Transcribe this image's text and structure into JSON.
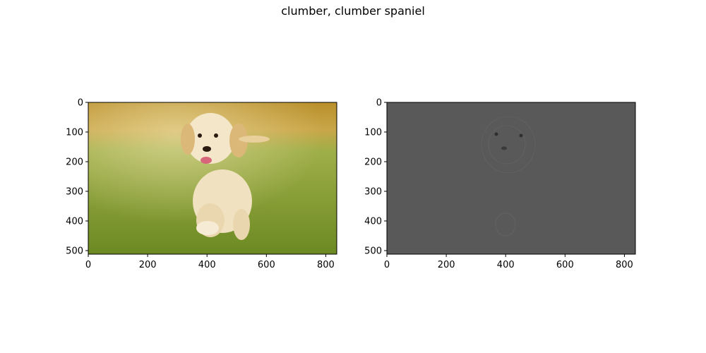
{
  "figure": {
    "title": "clumber, clumber spaniel"
  },
  "chart_data": [
    {
      "type": "image",
      "name": "original-image",
      "content": "photo of a golden retriever puppy running on grass",
      "xlim": [
        0,
        837
      ],
      "ylim": [
        512,
        0
      ],
      "xticks": [
        0,
        200,
        400,
        600,
        800
      ],
      "yticks": [
        0,
        100,
        200,
        300,
        400,
        500
      ],
      "xtick_labels": [
        "0",
        "200",
        "400",
        "600",
        "800"
      ],
      "ytick_labels": [
        "0",
        "100",
        "200",
        "300",
        "400",
        "500"
      ],
      "colors": {
        "sky": "#c9a23a",
        "grass": "#7e9a2c",
        "dog": "#f1e2c4"
      }
    },
    {
      "type": "image",
      "name": "saliency-map",
      "content": "gray saliency map with faint outline of the puppy face",
      "xlim": [
        0,
        837
      ],
      "ylim": [
        512,
        0
      ],
      "xticks": [
        0,
        200,
        400,
        600,
        800
      ],
      "yticks": [
        0,
        100,
        200,
        300,
        400,
        500
      ],
      "xtick_labels": [
        "0",
        "200",
        "400",
        "600",
        "800"
      ],
      "ytick_labels": [
        "0",
        "100",
        "200",
        "300",
        "400",
        "500"
      ],
      "colors": {
        "background": "#595959"
      }
    }
  ]
}
